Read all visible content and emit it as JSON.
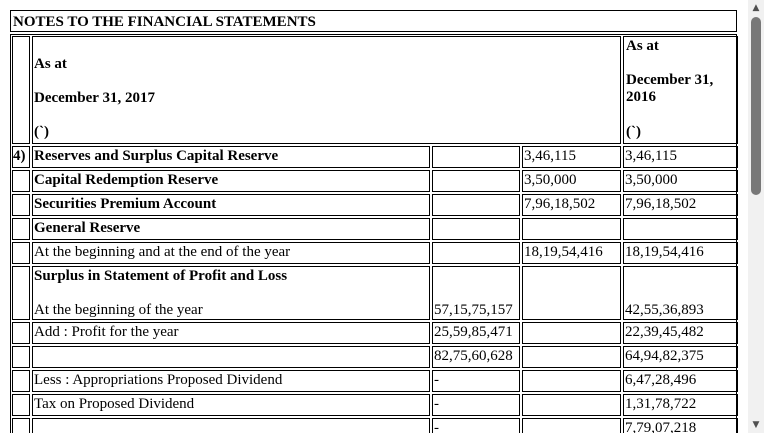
{
  "title": "NOTES TO THE FINANCIAL STATEMENTS",
  "header": {
    "left_as_at": "As at",
    "left_date": "December 31, 2017",
    "left_unit": "(`)",
    "right_as_at": "As at",
    "right_date_line1": "December 31,",
    "right_date_line2": "2016",
    "right_unit": "(`)"
  },
  "rows": [
    {
      "no": "4)",
      "label": "Reserves and Surplus Capital Reserve",
      "bold": true,
      "c1": "",
      "c2": "3,46,115",
      "c3": "3,46,115"
    },
    {
      "no": "",
      "label": "Capital Redemption Reserve",
      "bold": true,
      "c1": "",
      "c2": "3,50,000",
      "c3": "3,50,000"
    },
    {
      "no": "",
      "label": "Securities Premium Account",
      "bold": true,
      "c1": "",
      "c2": "7,96,18,502",
      "c3": "7,96,18,502"
    },
    {
      "no": "",
      "label": "General Reserve",
      "bold": true,
      "c1": "",
      "c2": "",
      "c3": ""
    },
    {
      "no": "",
      "label": "At the beginning and at the end of the year",
      "bold": false,
      "c1": "",
      "c2": "18,19,54,416",
      "c3": "18,19,54,416"
    },
    {
      "no": "",
      "label": "Surplus in Statement of Profit and Loss",
      "label2": "At the beginning of the year",
      "bold": true,
      "c1": "57,15,75,157",
      "c2": "",
      "c3": "42,55,36,893"
    },
    {
      "no": "",
      "label": "Add : Profit for the year",
      "bold": false,
      "c1": "25,59,85,471",
      "c2": "",
      "c3": "22,39,45,482"
    },
    {
      "no": "",
      "label": "",
      "bold": false,
      "c1": "82,75,60,628",
      "c2": "",
      "c3": "64,94,82,375"
    },
    {
      "no": "",
      "label": "Less : Appropriations Proposed Dividend",
      "bold": false,
      "c1": "-",
      "c2": "",
      "c3": "6,47,28,496"
    },
    {
      "no": "",
      "label": "Tax on Proposed Dividend",
      "bold": false,
      "c1": "-",
      "c2": "",
      "c3": "1,31,78,722"
    },
    {
      "no": "",
      "label": "",
      "bold": false,
      "c1": "-",
      "c2": "",
      "c3": "7,79,07,218"
    }
  ],
  "scrollbar": {
    "up_icon": "triangle-up",
    "down_icon": "triangle-down"
  }
}
